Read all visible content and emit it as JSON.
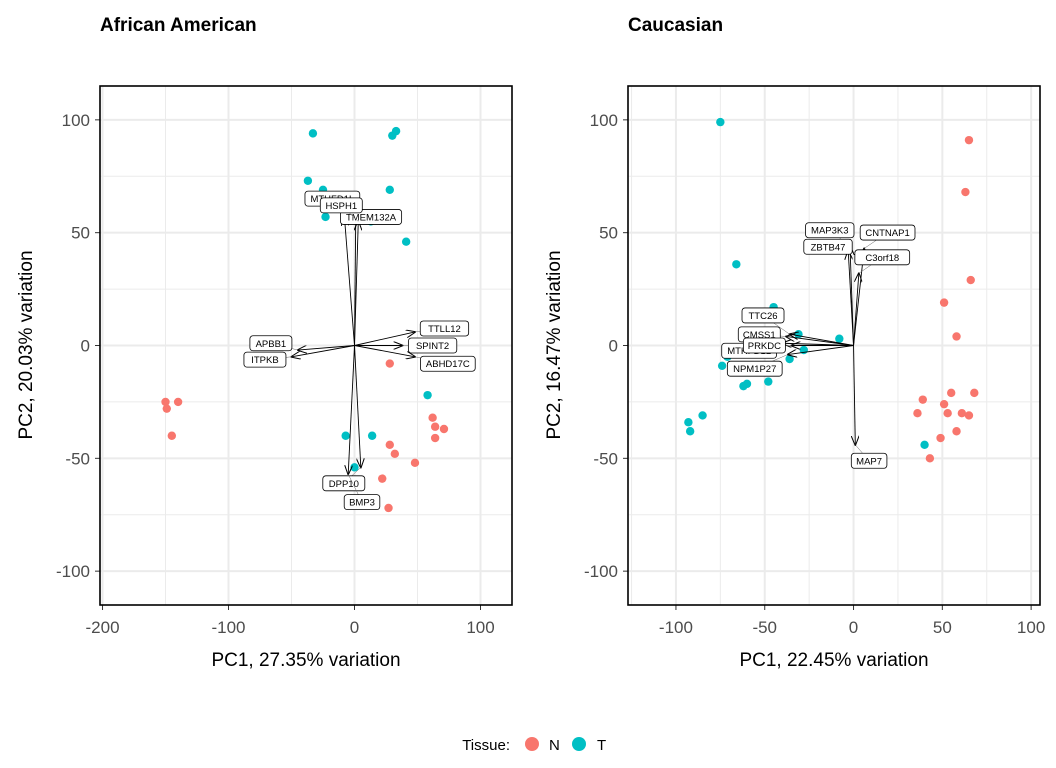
{
  "colors": {
    "N": "#F8766D",
    "T": "#00BFC4",
    "grid": "#EBEBEB",
    "arrow": "#000000"
  },
  "legend": {
    "title": "Tissue:",
    "items": [
      {
        "label": "N",
        "color": "#F8766D"
      },
      {
        "label": "T",
        "color": "#00BFC4"
      }
    ]
  },
  "chart_data": [
    {
      "type": "scatter",
      "title": "African American",
      "xlabel": "PC1, 27.35% variation",
      "ylabel": "PC2, 20.03% variation",
      "xlim": [
        -202,
        125
      ],
      "ylim": [
        -115,
        115
      ],
      "xticks": [
        -200,
        -100,
        0,
        100
      ],
      "yticks": [
        -100,
        -50,
        0,
        50,
        100
      ],
      "grid": true,
      "points": {
        "T": [
          [
            -33,
            94
          ],
          [
            -37,
            73
          ],
          [
            -25,
            69
          ],
          [
            -23,
            57
          ],
          [
            28,
            69
          ],
          [
            30,
            93
          ],
          [
            33,
            95
          ],
          [
            13,
            55
          ],
          [
            16,
            56
          ],
          [
            41,
            46
          ],
          [
            58,
            -22
          ],
          [
            -7,
            -40
          ],
          [
            14,
            -40
          ],
          [
            0,
            -54
          ]
        ],
        "N": [
          [
            -150,
            -25
          ],
          [
            -149,
            -28
          ],
          [
            -140,
            -25
          ],
          [
            -145,
            -40
          ],
          [
            28,
            -8
          ],
          [
            28,
            -44
          ],
          [
            32,
            -48
          ],
          [
            48,
            -52
          ],
          [
            62,
            -32
          ],
          [
            64,
            -36
          ],
          [
            64,
            -41
          ],
          [
            71,
            -37
          ],
          [
            22,
            -59
          ],
          [
            27,
            -72
          ]
        ]
      },
      "loadings": [
        {
          "label": "MTHFD1L",
          "x": 1,
          "y": 58
        },
        {
          "label": "TMEM132A",
          "x": -8,
          "y": 57
        },
        {
          "label": "HSPH1",
          "x": 3,
          "y": 55
        },
        {
          "label": "TTLL12",
          "x": 48,
          "y": 6
        },
        {
          "label": "ITPKB",
          "x": -50,
          "y": -5
        },
        {
          "label": "SPINT2",
          "x": 38,
          "y": 0
        },
        {
          "label": "APBB1",
          "x": -45,
          "y": -2
        },
        {
          "label": "ABHD17C",
          "x": 48,
          "y": -5
        },
        {
          "label": "DPP10",
          "x": 5,
          "y": -54
        },
        {
          "label": "BMP3",
          "x": -5,
          "y": -57
        }
      ]
    },
    {
      "type": "scatter",
      "title": "Caucasian",
      "xlabel": "PC1, 22.45% variation",
      "ylabel": "PC2, 16.47% variation",
      "xlim": [
        -127,
        105
      ],
      "ylim": [
        -115,
        115
      ],
      "xticks": [
        -100,
        -50,
        0,
        50,
        100
      ],
      "yticks": [
        -100,
        -50,
        0,
        50,
        100
      ],
      "grid": true,
      "points": {
        "T": [
          [
            -75,
            99
          ],
          [
            -66,
            36
          ],
          [
            -45,
            17
          ],
          [
            -55,
            14
          ],
          [
            -31,
            5
          ],
          [
            -8,
            3
          ],
          [
            -71,
            -5
          ],
          [
            -74,
            -9
          ],
          [
            -60,
            -17
          ],
          [
            -62,
            -18
          ],
          [
            -48,
            -16
          ],
          [
            -36,
            -6
          ],
          [
            -28,
            -2
          ],
          [
            -85,
            -31
          ],
          [
            -93,
            -34
          ],
          [
            -92,
            -38
          ],
          [
            40,
            -44
          ]
        ],
        "N": [
          [
            65,
            91
          ],
          [
            63,
            68
          ],
          [
            66,
            29
          ],
          [
            51,
            19
          ],
          [
            58,
            4
          ],
          [
            39,
            -24
          ],
          [
            36,
            -30
          ],
          [
            51,
            -26
          ],
          [
            55,
            -21
          ],
          [
            53,
            -30
          ],
          [
            61,
            -30
          ],
          [
            65,
            -31
          ],
          [
            68,
            -21
          ],
          [
            58,
            -38
          ],
          [
            49,
            -41
          ],
          [
            43,
            -50
          ]
        ]
      },
      "loadings": [
        {
          "label": "MAP3K3",
          "x": -2,
          "y": 44
        },
        {
          "label": "CNTNAP1",
          "x": 6,
          "y": 43
        },
        {
          "label": "ZBTB47",
          "x": -3,
          "y": 42
        },
        {
          "label": "C3orf18",
          "x": 3,
          "y": 32
        },
        {
          "label": "CMSS1",
          "x": -38,
          "y": 4
        },
        {
          "label": "TTC26",
          "x": -36,
          "y": 5
        },
        {
          "label": "MTHFD1L",
          "x": -40,
          "y": 1
        },
        {
          "label": "PRKDC",
          "x": -35,
          "y": 0
        },
        {
          "label": "NPM1P27",
          "x": -37,
          "y": -4
        },
        {
          "label": "MAP7",
          "x": 1,
          "y": -44
        }
      ]
    }
  ]
}
